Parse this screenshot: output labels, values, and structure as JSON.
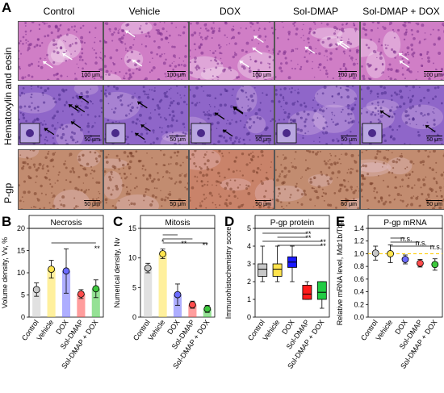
{
  "panel_a": {
    "letter": "A",
    "columns": [
      "Control",
      "Vehicle",
      "DOX",
      "Sol-DMAP",
      "Sol-DMAP + DOX"
    ],
    "rows": [
      {
        "label": "Hematoxylin and eosin",
        "scales": [
          "100 μm",
          "100 μm",
          "100 μm",
          "100 μm",
          "100 μm"
        ],
        "tint": "#c56fb8"
      },
      {
        "label": "",
        "scales": [
          "50 μm",
          "50 μm",
          "50 μm",
          "50 μm",
          "50 μm"
        ],
        "tint": "#8a5cc4"
      },
      {
        "label": "P-gp",
        "scales": [
          "50 μm",
          "50 μm",
          "50 μm",
          "50 μm",
          "50 μm"
        ],
        "tint": "#b8806c"
      }
    ]
  },
  "chart_data": [
    {
      "panel": "B",
      "type": "bar",
      "title": "Necrosis",
      "ylabel": "Volume density, Vv, %",
      "xlabel": "",
      "ylim": [
        0,
        20
      ],
      "yticks": [
        0,
        5,
        10,
        15,
        20
      ],
      "categories": [
        "Control",
        "Vehicle",
        "DOX",
        "Sol-DMAP",
        "Sol-DMAP + DOX"
      ],
      "values": [
        6.2,
        10.8,
        10.4,
        5.2,
        6.4
      ],
      "errors": [
        1.5,
        2.0,
        5.0,
        1.0,
        2.0
      ],
      "colors": [
        "#c8c8c8",
        "#ffe44d",
        "#6b6bff",
        "#ff4c4c",
        "#3ec83e"
      ],
      "significance": [
        {
          "from": 1,
          "to": 4,
          "label": "**"
        }
      ]
    },
    {
      "panel": "C",
      "type": "bar",
      "title": "Mitosis",
      "ylabel": "Numerical density, Nv",
      "xlabel": "",
      "ylim": [
        0,
        15
      ],
      "yticks": [
        0,
        5,
        10,
        15
      ],
      "categories": [
        "Control",
        "Vehicle",
        "DOX",
        "Sol-DMAP",
        "Sol-DMAP + DOX"
      ],
      "values": [
        8.3,
        10.7,
        3.8,
        2.1,
        1.4
      ],
      "errors": [
        0.8,
        0.8,
        1.8,
        0.6,
        0.6
      ],
      "colors": [
        "#c8c8c8",
        "#ffe44d",
        "#6b6bff",
        "#ff4c4c",
        "#3ec83e"
      ],
      "significance": [
        {
          "from": 1,
          "to": 2,
          "label": "*"
        },
        {
          "from": 1,
          "to": 3,
          "label": "**"
        },
        {
          "from": 1,
          "to": 4,
          "label": "**"
        }
      ]
    },
    {
      "panel": "D",
      "type": "box",
      "title": "P-gp protein",
      "ylabel": "Immunohistochemistry score",
      "xlabel": "",
      "ylim": [
        0,
        5
      ],
      "yticks": [
        0,
        1,
        2,
        3,
        4,
        5
      ],
      "categories": [
        "Control",
        "Vehicle",
        "DOX",
        "Sol-DMAP",
        "Sol-DMAP + DOX"
      ],
      "boxes": [
        {
          "min": 2.0,
          "q1": 2.3,
          "median": 2.7,
          "q3": 3.0,
          "max": 4.0
        },
        {
          "min": 2.0,
          "q1": 2.3,
          "median": 2.7,
          "q3": 3.0,
          "max": 4.0
        },
        {
          "min": 2.0,
          "q1": 2.8,
          "median": 3.1,
          "q3": 3.4,
          "max": 4.0
        },
        {
          "min": 1.0,
          "q1": 1.0,
          "median": 1.3,
          "q3": 1.8,
          "max": 2.0
        },
        {
          "min": 0.5,
          "q1": 1.0,
          "median": 1.4,
          "q3": 2.0,
          "max": 2.0
        }
      ],
      "colors": [
        "#c8c8c8",
        "#ffe44d",
        "#1a1aff",
        "#ff1a1a",
        "#22cc44"
      ],
      "significance": [
        {
          "from": 0,
          "to": 3,
          "label": "**"
        },
        {
          "from": 1,
          "to": 3,
          "label": "**"
        },
        {
          "from": 0,
          "to": 4,
          "label": "**"
        },
        {
          "from": 1,
          "to": 4,
          "label": "**"
        }
      ]
    },
    {
      "panel": "E",
      "type": "scatter",
      "title": "P-gp mRNA",
      "ylabel": "Relative mRNA level, Mdr1b/Tbp",
      "xlabel": "",
      "ylim": [
        0,
        1.4
      ],
      "yticks": [
        0.0,
        0.2,
        0.4,
        0.6,
        0.8,
        1.0,
        1.2,
        1.4
      ],
      "categories": [
        "Control",
        "Vehicle",
        "DOX",
        "Sol-DMAP",
        "Sol-DMAP + DOX"
      ],
      "values": [
        1.01,
        1.0,
        0.91,
        0.85,
        0.83
      ],
      "errors": [
        0.11,
        0.14,
        0.07,
        0.06,
        0.09
      ],
      "colors": [
        "#c8c8c8",
        "#ffe44d",
        "#6b6bff",
        "#ff4c4c",
        "#3ec83e"
      ],
      "reference_line": 1.0,
      "reference_color": "#ffcc00",
      "significance": [
        {
          "from": 1,
          "to": 2,
          "label": "n.s."
        },
        {
          "from": 1,
          "to": 3,
          "label": "n.s."
        },
        {
          "from": 1,
          "to": 4,
          "label": "n.s."
        }
      ]
    }
  ]
}
